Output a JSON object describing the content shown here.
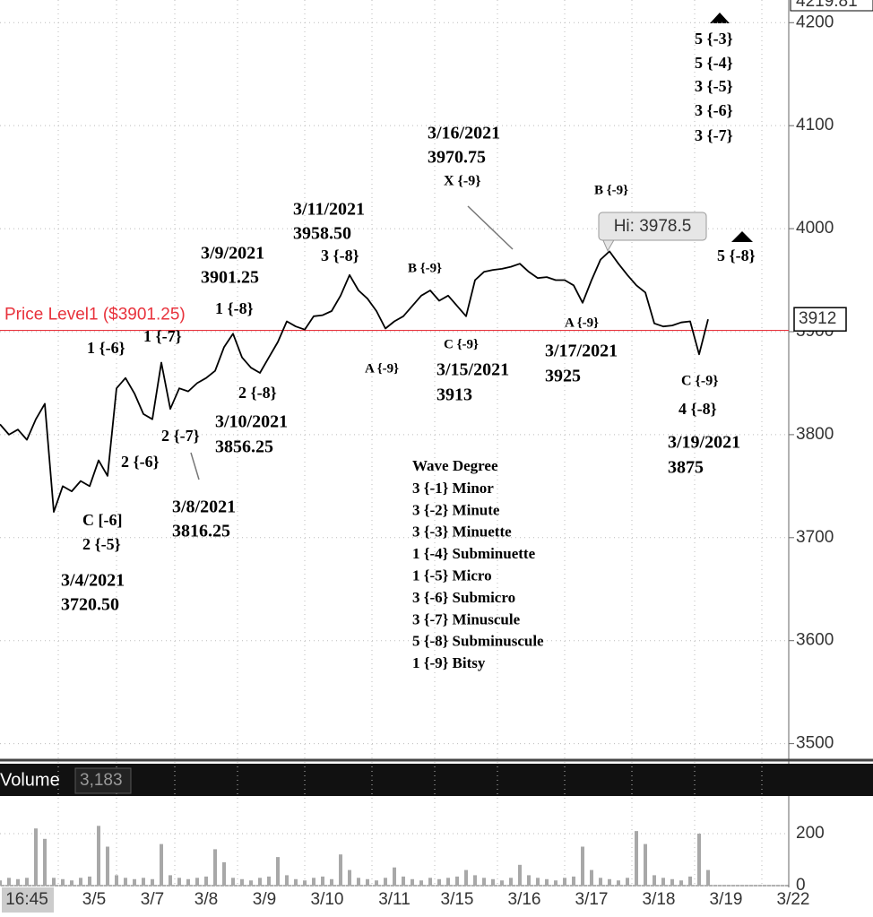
{
  "chart_data": {
    "type": "line",
    "series": [
      {
        "color": "#000000",
        "values": [
          3810,
          3800,
          3805,
          3795,
          3815,
          3830,
          3725,
          3750,
          3745,
          3755,
          3750,
          3775,
          3760,
          3845,
          3855,
          3840,
          3820,
          3815,
          3870,
          3825,
          3845,
          3842,
          3850,
          3855,
          3862,
          3885,
          3898,
          3875,
          3865,
          3860,
          3875,
          3890,
          3910,
          3905,
          3902,
          3915,
          3916,
          3920,
          3935,
          3955,
          3940,
          3932,
          3920,
          3903,
          3910,
          3915,
          3925,
          3935,
          3940,
          3930,
          3935,
          3925,
          3915,
          3950,
          3958,
          3960,
          3961,
          3963,
          3966,
          3958,
          3952,
          3953,
          3950,
          3950,
          3945,
          3928,
          3950,
          3970,
          3978,
          3966,
          3955,
          3945,
          3938,
          3908,
          3905,
          3906,
          3909,
          3910,
          3878,
          3912
        ]
      }
    ],
    "ylim": [
      3484,
      4222
    ],
    "yticks": [
      3500,
      3600,
      3700,
      3800,
      3900,
      4000,
      4100,
      4200
    ],
    "grid": true,
    "x_axis_labels": [
      "16:45",
      "3/5",
      "3/7",
      "3/8",
      "3/9",
      "3/10",
      "3/11",
      "3/15",
      "3/16",
      "3/17",
      "3/18",
      "3/19",
      "3/22"
    ],
    "top_price": 4219.81,
    "last_price": 3912,
    "price_level": {
      "label": "Price Level1 ($3901.25)",
      "value": 3901.25,
      "color": "#e8323c"
    },
    "high": {
      "label": "Hi: 3978.5",
      "value": 3978.5
    },
    "annotations": [
      "5 {-3}",
      "5 {-4}",
      "3 {-5}",
      "3 {-6}",
      "3 {-7}",
      "3/16/2021",
      "3970.75",
      "X {-9}",
      "B {-9}",
      "3/11/2021",
      "3958.50",
      "3 {-8}",
      "3/9/2021",
      "3901.25",
      "1 {-8}",
      "5 {-8}",
      "B {-9}",
      "1 {-6}",
      "1 {-7}",
      "A {-9}",
      "C {-9}",
      "3/17/2021",
      "A {-9}",
      "3/15/2021",
      "3925",
      "3913",
      "C {-9}",
      "2 {-8}",
      "4 {-8}",
      "3/10/2021",
      "2 {-7}",
      "3856.25",
      "3/19/2021",
      "3875",
      "2 {-6}",
      "3/8/2021",
      "3816.25",
      "C [-6]",
      "2 {-5}",
      "3/4/2021",
      "3720.50"
    ],
    "wave_degree": {
      "title": "Wave Degree",
      "rows": [
        "3 {-1} Minor",
        "3 {-2} Minute",
        "3 {-3} Minuette",
        "1 {-4} Subminuette",
        "1 {-5} Micro",
        "3 {-6} Submicro",
        "3 {-7} Minuscule",
        "5 {-8} Subminuscule",
        "1 {-9} Bitsy"
      ]
    },
    "volume": {
      "title": "Volume",
      "last": "3,183",
      "color": "#a8a8a8",
      "values": [
        20,
        30,
        25,
        30,
        220,
        180,
        30,
        25,
        20,
        30,
        35,
        230,
        150,
        40,
        30,
        25,
        30,
        25,
        160,
        40,
        30,
        25,
        30,
        35,
        140,
        90,
        30,
        25,
        20,
        30,
        35,
        110,
        40,
        25,
        20,
        30,
        35,
        25,
        120,
        60,
        30,
        25,
        20,
        30,
        70,
        35,
        25,
        20,
        30,
        25,
        30,
        35,
        60,
        40,
        30,
        25,
        20,
        30,
        80,
        40,
        30,
        25,
        20,
        30,
        35,
        150,
        60,
        30,
        25,
        20,
        30,
        210,
        160,
        40,
        30,
        25,
        20,
        35,
        200,
        60
      ],
      "ylim": [
        0,
        338
      ],
      "yticks": [
        0,
        200
      ]
    }
  }
}
